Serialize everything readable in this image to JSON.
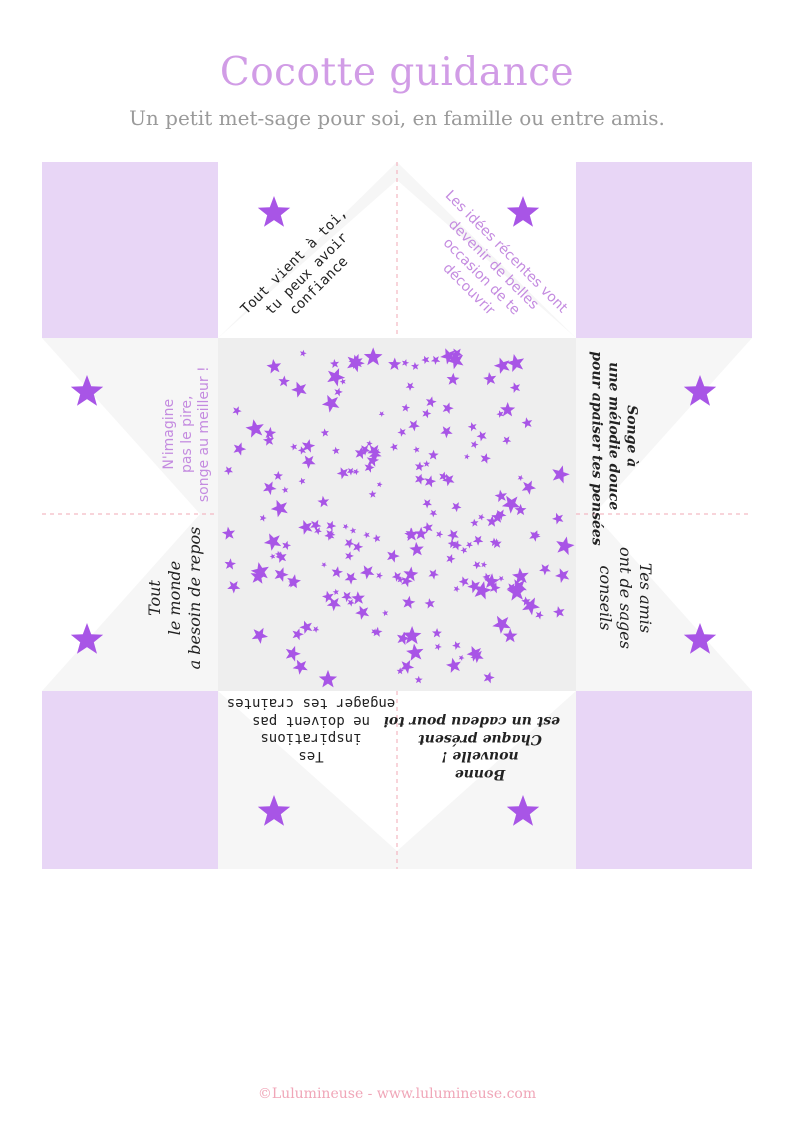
{
  "header": {
    "title": "Cocotte guidance",
    "subtitle": "Un petit met-sage pour soi, en famille ou entre amis."
  },
  "colors": {
    "lavender": "#e8d6f6",
    "star": "#a855e6",
    "panel": "#f6f6f6",
    "center": "#eeeeee",
    "fold_marks": "#f2a8b6",
    "title": "#d19ce6"
  },
  "messages": {
    "top_left": "Tout vient à toi,\ntu peux avoir\nconfiance",
    "top_right": "Les idées récentes vont\ndevenir de belles\noccasion de te\ndécouvrir",
    "right_top": "Songe à\nune mélodie douce\npour apaiser tes pensées",
    "right_bottom": "Tes amis\nont de sages\nconseils",
    "bottom_right": "Bonne\nnouvelle !\nChaque présent\nest un cadeau pour toi",
    "bottom_left": "Tes\ninspirations\nne doivent pas\nengager tes craintes",
    "left_bottom": "Tout\nle monde\na besoin de repos",
    "left_top": "N'imagine\npas le pire,\nsonge au meilleur !"
  },
  "icons": {
    "corner_star": "star-icon",
    "center_pattern": "star-burst"
  },
  "footer": {
    "credit": "©Lulumineuse - www.lulumineuse.com"
  }
}
